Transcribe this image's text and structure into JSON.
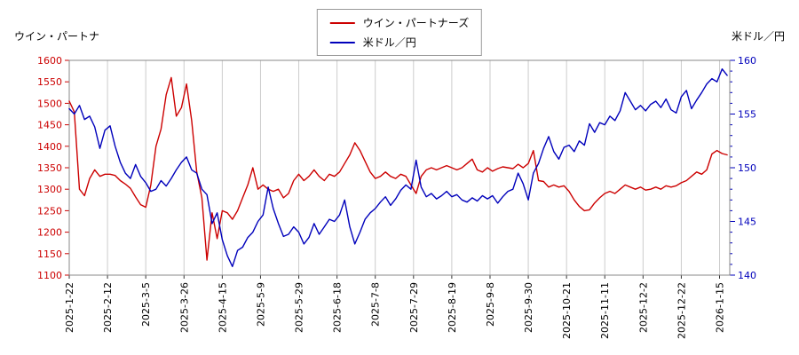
{
  "page": {
    "top_left_label": "ウイン・パートナ",
    "top_right_label": "米ドル／円"
  },
  "legend": {
    "items": [
      {
        "label": "ウイン・パートナーズ",
        "color": "#cc0000"
      },
      {
        "label": "米ドル／円",
        "color": "#0000bb"
      }
    ]
  },
  "chart_data": {
    "type": "line",
    "title": "",
    "grid_color": "#cccccc",
    "x_step_days": 2,
    "x_axis": {
      "labels": [
        "2025-1-22",
        "2025-2-12",
        "2025-3-5",
        "2025-3-26",
        "2025-4-15",
        "2025-5-9",
        "2025-5-29",
        "2025-6-18",
        "2025-7-8",
        "2025-7-29",
        "2025-8-19",
        "2025-9-8",
        "2025-9-30",
        "2025-10-21",
        "2025-11-11",
        "2025-12-2",
        "2025-12-22",
        "2026-1-15"
      ],
      "tick_interval_days": 15,
      "total_days": 259
    },
    "left_axis": {
      "label": "ウイン・パートナ",
      "color": "#cc0000",
      "min": 1100,
      "max": 1600,
      "tick_step": 50,
      "ticks": [
        1600,
        1550,
        1500,
        1450,
        1400,
        1350,
        1300,
        1250,
        1200,
        1150,
        1100
      ]
    },
    "right_axis": {
      "label": "米ドル／円",
      "color": "#0000bb",
      "min": 140,
      "max": 160,
      "tick_step": 5,
      "minor_tick_step": 1,
      "ticks": [
        160,
        155,
        150,
        145,
        140
      ]
    },
    "series": [
      {
        "name": "ウイン・パートナーズ",
        "axis": "left",
        "color": "#cc0000",
        "values": [
          1505,
          1480,
          1300,
          1285,
          1325,
          1345,
          1330,
          1335,
          1335,
          1332,
          1320,
          1312,
          1302,
          1282,
          1264,
          1258,
          1310,
          1400,
          1440,
          1520,
          1560,
          1470,
          1490,
          1545,
          1460,
          1340,
          1280,
          1135,
          1245,
          1185,
          1250,
          1245,
          1230,
          1250,
          1280,
          1310,
          1350,
          1300,
          1310,
          1300,
          1295,
          1300,
          1280,
          1290,
          1320,
          1335,
          1320,
          1330,
          1345,
          1330,
          1320,
          1335,
          1330,
          1340,
          1360,
          1380,
          1408,
          1390,
          1365,
          1340,
          1325,
          1330,
          1340,
          1330,
          1325,
          1335,
          1330,
          1310,
          1290,
          1330,
          1345,
          1350,
          1345,
          1350,
          1355,
          1350,
          1345,
          1350,
          1360,
          1370,
          1345,
          1340,
          1350,
          1342,
          1348,
          1352,
          1350,
          1348,
          1358,
          1350,
          1360,
          1390,
          1320,
          1318,
          1305,
          1310,
          1305,
          1308,
          1295,
          1275,
          1260,
          1250,
          1252,
          1268,
          1280,
          1290,
          1295,
          1290,
          1300,
          1310,
          1305,
          1300,
          1305,
          1298,
          1300,
          1305,
          1300,
          1308,
          1305,
          1308,
          1315,
          1320,
          1330,
          1340,
          1335,
          1345,
          1382,
          1390,
          1383,
          1380
        ]
      },
      {
        "name": "米ドル／円",
        "axis": "right",
        "color": "#0000bb",
        "values": [
          155.5,
          155.0,
          155.8,
          154.5,
          154.8,
          153.8,
          151.8,
          153.5,
          153.9,
          152.0,
          150.5,
          149.5,
          149.0,
          150.3,
          149.2,
          148.6,
          147.8,
          148.0,
          148.8,
          148.3,
          149.0,
          149.8,
          150.5,
          151.0,
          149.8,
          149.5,
          148.0,
          147.5,
          144.8,
          145.8,
          143.3,
          141.8,
          140.8,
          142.3,
          142.6,
          143.5,
          144.0,
          145.0,
          145.6,
          148.2,
          146.2,
          144.8,
          143.6,
          143.8,
          144.5,
          144.0,
          142.9,
          143.5,
          144.8,
          143.8,
          144.5,
          145.2,
          145.0,
          145.6,
          147.0,
          144.5,
          142.9,
          144.0,
          145.2,
          145.8,
          146.2,
          146.8,
          147.3,
          146.5,
          147.1,
          147.9,
          148.4,
          148.0,
          150.7,
          148.2,
          147.3,
          147.6,
          147.1,
          147.4,
          147.8,
          147.3,
          147.5,
          147.0,
          146.8,
          147.2,
          146.9,
          147.4,
          147.1,
          147.4,
          146.7,
          147.3,
          147.8,
          148.0,
          149.5,
          148.5,
          147.0,
          149.5,
          150.4,
          151.8,
          152.9,
          151.5,
          150.8,
          151.9,
          152.1,
          151.5,
          152.5,
          152.1,
          154.1,
          153.3,
          154.2,
          154.0,
          154.8,
          154.4,
          155.3,
          157.0,
          156.2,
          155.4,
          155.8,
          155.3,
          155.9,
          156.2,
          155.6,
          156.4,
          155.4,
          155.1,
          156.6,
          157.2,
          155.5,
          156.3,
          157.0,
          157.8,
          158.3,
          158.0,
          159.2,
          158.6
        ]
      }
    ]
  }
}
